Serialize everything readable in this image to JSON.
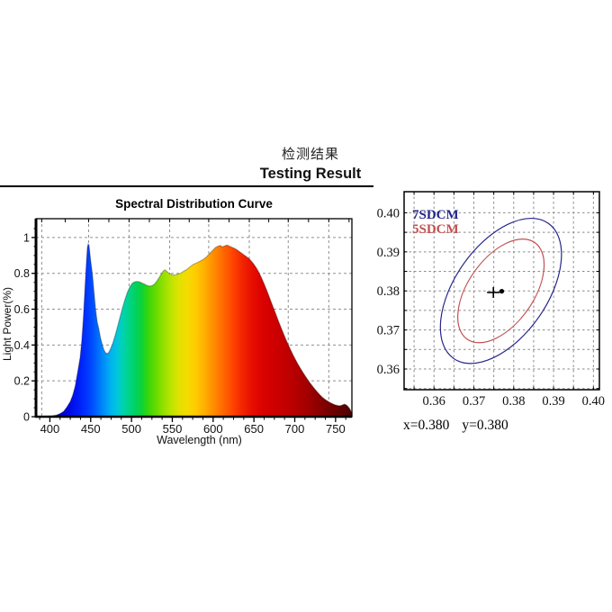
{
  "header": {
    "title_zh": "检测结果",
    "title_en": "Testing Result"
  },
  "reading": {
    "x": "x=0.380",
    "y": "y=0.380"
  },
  "chart_data": [
    {
      "type": "area",
      "name": "spectral-distribution-curve",
      "title": "Spectral Distribution Curve",
      "xlabel": "Wavelength (nm)",
      "ylabel": "Light Power(%)",
      "xlim": [
        383,
        770
      ],
      "ylim": [
        0,
        1.105
      ],
      "xticks": [
        400,
        450,
        500,
        550,
        600,
        650,
        700,
        750
      ],
      "yticks": [
        0,
        0.2,
        0.4,
        0.6,
        0.8,
        1
      ],
      "ytick_labels": [
        "0",
        "0.2",
        "0.4",
        "0.6",
        "0.8",
        "1"
      ],
      "x_gridlines": [
        390,
        447.5,
        497,
        546.8,
        594.6,
        644.3,
        692,
        741.7
      ],
      "y_gridlines": [
        0.2,
        0.4,
        0.6,
        0.8,
        1
      ],
      "grid_style": "dashed-gray",
      "points": [
        [
          383,
          0
        ],
        [
          392,
          0.002
        ],
        [
          398,
          0.003
        ],
        [
          403,
          0.005
        ],
        [
          408,
          0.009
        ],
        [
          413,
          0.018
        ],
        [
          417,
          0.03
        ],
        [
          421,
          0.055
        ],
        [
          425,
          0.085
        ],
        [
          428,
          0.12
        ],
        [
          431,
          0.17
        ],
        [
          434,
          0.25
        ],
        [
          437,
          0.33
        ],
        [
          439,
          0.42
        ],
        [
          441,
          0.55
        ],
        [
          443,
          0.72
        ],
        [
          445,
          0.88
        ],
        [
          446,
          0.945
        ],
        [
          447,
          0.965
        ],
        [
          448,
          0.955
        ],
        [
          450,
          0.87
        ],
        [
          452,
          0.8
        ],
        [
          454,
          0.7
        ],
        [
          456,
          0.6
        ],
        [
          458,
          0.53
        ],
        [
          460,
          0.49
        ],
        [
          462,
          0.44
        ],
        [
          464,
          0.405
        ],
        [
          466,
          0.375
        ],
        [
          468,
          0.358
        ],
        [
          470,
          0.352
        ],
        [
          472,
          0.358
        ],
        [
          474,
          0.375
        ],
        [
          477,
          0.41
        ],
        [
          480,
          0.455
        ],
        [
          483,
          0.505
        ],
        [
          486,
          0.557
        ],
        [
          489,
          0.608
        ],
        [
          492,
          0.655
        ],
        [
          495,
          0.695
        ],
        [
          498,
          0.725
        ],
        [
          501,
          0.745
        ],
        [
          504,
          0.753
        ],
        [
          507,
          0.755
        ],
        [
          510,
          0.752
        ],
        [
          513,
          0.746
        ],
        [
          516,
          0.74
        ],
        [
          519,
          0.733
        ],
        [
          522,
          0.729
        ],
        [
          525,
          0.731
        ],
        [
          528,
          0.74
        ],
        [
          531,
          0.756
        ],
        [
          534,
          0.778
        ],
        [
          537,
          0.8
        ],
        [
          539,
          0.813
        ],
        [
          541,
          0.82
        ],
        [
          543,
          0.812
        ],
        [
          546,
          0.8
        ],
        [
          549,
          0.793
        ],
        [
          552,
          0.79
        ],
        [
          556,
          0.794
        ],
        [
          560,
          0.8
        ],
        [
          564,
          0.812
        ],
        [
          568,
          0.822
        ],
        [
          572,
          0.838
        ],
        [
          576,
          0.851
        ],
        [
          580,
          0.859
        ],
        [
          584,
          0.868
        ],
        [
          588,
          0.878
        ],
        [
          592,
          0.893
        ],
        [
          596,
          0.912
        ],
        [
          600,
          0.93
        ],
        [
          603,
          0.945
        ],
        [
          606,
          0.952
        ],
        [
          609,
          0.956
        ],
        [
          611,
          0.948
        ],
        [
          614,
          0.953
        ],
        [
          617,
          0.958
        ],
        [
          620,
          0.952
        ],
        [
          623,
          0.946
        ],
        [
          626,
          0.94
        ],
        [
          629,
          0.932
        ],
        [
          632,
          0.922
        ],
        [
          635,
          0.912
        ],
        [
          638,
          0.902
        ],
        [
          641,
          0.893
        ],
        [
          644,
          0.882
        ],
        [
          647,
          0.868
        ],
        [
          650,
          0.85
        ],
        [
          653,
          0.83
        ],
        [
          656,
          0.806
        ],
        [
          659,
          0.778
        ],
        [
          662,
          0.747
        ],
        [
          665,
          0.713
        ],
        [
          668,
          0.678
        ],
        [
          671,
          0.642
        ],
        [
          674,
          0.606
        ],
        [
          677,
          0.57
        ],
        [
          680,
          0.534
        ],
        [
          683,
          0.5
        ],
        [
          686,
          0.466
        ],
        [
          689,
          0.433
        ],
        [
          692,
          0.402
        ],
        [
          695,
          0.372
        ],
        [
          698,
          0.344
        ],
        [
          701,
          0.318
        ],
        [
          704,
          0.293
        ],
        [
          707,
          0.269
        ],
        [
          710,
          0.247
        ],
        [
          713,
          0.226
        ],
        [
          716,
          0.206
        ],
        [
          719,
          0.187
        ],
        [
          722,
          0.169
        ],
        [
          725,
          0.152
        ],
        [
          728,
          0.136
        ],
        [
          731,
          0.121
        ],
        [
          734,
          0.108
        ],
        [
          737,
          0.097
        ],
        [
          740,
          0.088
        ],
        [
          743,
          0.08
        ],
        [
          746,
          0.073
        ],
        [
          749,
          0.067
        ],
        [
          752,
          0.063
        ],
        [
          755,
          0.061
        ],
        [
          757,
          0.063
        ],
        [
          759,
          0.067
        ],
        [
          761,
          0.07
        ],
        [
          763,
          0.066
        ],
        [
          765,
          0.058
        ],
        [
          767,
          0.046
        ],
        [
          768,
          0.038
        ],
        [
          769,
          0.028
        ],
        [
          770,
          0.018
        ]
      ],
      "gradient_stops": [
        [
          383,
          "#10008c"
        ],
        [
          404,
          "#1400b4"
        ],
        [
          414,
          "#0000d2"
        ],
        [
          424,
          "#000ae6"
        ],
        [
          434,
          "#001af6"
        ],
        [
          444,
          "#0032ff"
        ],
        [
          454,
          "#0056ff"
        ],
        [
          464,
          "#0086fa"
        ],
        [
          474,
          "#00b0f0"
        ],
        [
          482,
          "#00c6dc"
        ],
        [
          489,
          "#00d2b4"
        ],
        [
          496,
          "#00d48c"
        ],
        [
          504,
          "#00d264"
        ],
        [
          512,
          "#0cd23c"
        ],
        [
          520,
          "#34d60a"
        ],
        [
          529,
          "#62da00"
        ],
        [
          539,
          "#92e000"
        ],
        [
          549,
          "#bee400"
        ],
        [
          559,
          "#e2e200"
        ],
        [
          569,
          "#f6da00"
        ],
        [
          579,
          "#ffca00"
        ],
        [
          589,
          "#ffb000"
        ],
        [
          599,
          "#ff9200"
        ],
        [
          609,
          "#ff7200"
        ],
        [
          619,
          "#ff5400"
        ],
        [
          629,
          "#fa3600"
        ],
        [
          639,
          "#f01e00"
        ],
        [
          649,
          "#e60c00"
        ],
        [
          659,
          "#dc0300"
        ],
        [
          671,
          "#d20000"
        ],
        [
          685,
          "#c60000"
        ],
        [
          699,
          "#b80000"
        ],
        [
          714,
          "#a40000"
        ],
        [
          729,
          "#8c0000"
        ],
        [
          744,
          "#740000"
        ],
        [
          757,
          "#600000"
        ],
        [
          770,
          "#4c0000"
        ]
      ]
    },
    {
      "type": "scatter",
      "name": "chromaticity-sdcm-diagram",
      "xlim": [
        0.3525,
        0.4015
      ],
      "ylim": [
        0.3547,
        0.4054
      ],
      "xticks": [
        0.36,
        0.37,
        0.38,
        0.39,
        0.4
      ],
      "yticks": [
        0.36,
        0.37,
        0.38,
        0.39,
        0.4
      ],
      "grid_step": 0.005,
      "grid_style": "dashed-gray",
      "legend": [
        {
          "label": "7SDCM",
          "color": "#26268c"
        },
        {
          "label": "5SDCM",
          "color": "#c05252"
        }
      ],
      "ellipses": [
        {
          "label": "7SDCM",
          "color": "#26268c",
          "cx": 0.3768,
          "cy": 0.38,
          "a": 0.0207,
          "b": 0.0118,
          "angle_deg": 55
        },
        {
          "label": "5SDCM",
          "color": "#c05252",
          "cx": 0.3768,
          "cy": 0.38,
          "a": 0.0148,
          "b": 0.0084,
          "angle_deg": 55
        }
      ],
      "target_cross": {
        "x": 0.3749,
        "y": 0.3796
      },
      "measured_point": {
        "x": 0.377,
        "y": 0.3799
      }
    }
  ]
}
